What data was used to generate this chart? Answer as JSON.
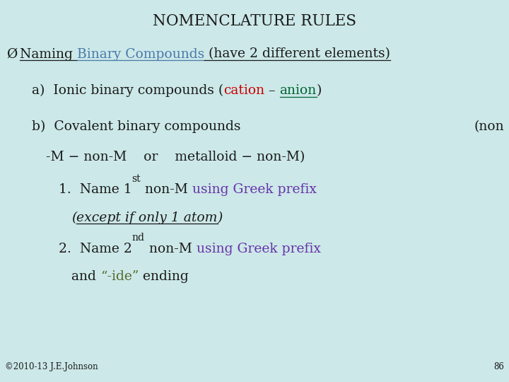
{
  "title": "NOMENCLATURE RULES",
  "bg_color": "#cce8e8",
  "body_color": "#1a1a1a",
  "blue_color": "#4a7aaa",
  "red_color": "#cc0000",
  "green_color": "#006633",
  "purple_color": "#6633aa",
  "olive_color": "#556b2f",
  "footer_text": "©2010-13 J.E.Johnson",
  "page_num": "86",
  "fig_width": 7.2,
  "fig_height": 5.4,
  "dpi": 100
}
